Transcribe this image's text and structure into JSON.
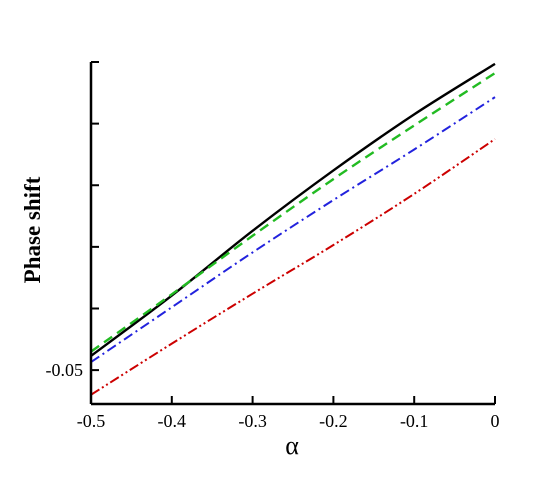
{
  "chart_data": {
    "type": "line",
    "title": "",
    "xlabel": "α",
    "ylabel": "Phase shift",
    "xlim": [
      -0.5,
      0
    ],
    "ylim": [
      -0.0555,
      0.0
    ],
    "x_ticks": [
      -0.5,
      -0.4,
      -0.3,
      -0.2,
      -0.1,
      0
    ],
    "x_tick_labels": [
      "-0.5",
      "-0.4",
      "-0.3",
      "-0.2",
      "-0.1",
      "0"
    ],
    "y_ticks": [
      -0.05,
      -0.04,
      -0.03,
      -0.02,
      -0.01,
      0.0
    ],
    "y_tick_labels": [
      "-0.05",
      "",
      "",
      "",
      "",
      ""
    ],
    "grid": false,
    "series": [
      {
        "color": "#000000",
        "style": "solid",
        "x": [
          -0.5,
          -0.4,
          -0.3,
          -0.2,
          -0.1,
          0
        ],
        "y": [
          -0.0477,
          -0.0379,
          -0.0274,
          -0.0176,
          -0.0085,
          -0.0003
        ]
      },
      {
        "color": "#22bb22",
        "style": "dashed",
        "x": [
          -0.5,
          -0.4,
          -0.3,
          -0.2,
          -0.1,
          0
        ],
        "y": [
          -0.047,
          -0.0377,
          -0.0282,
          -0.019,
          -0.0103,
          -0.0018
        ]
      },
      {
        "color": "#2222dd",
        "style": "dashdot",
        "x": [
          -0.5,
          -0.4,
          -0.3,
          -0.2,
          -0.1,
          0
        ],
        "y": [
          -0.0487,
          -0.0398,
          -0.0309,
          -0.0224,
          -0.0142,
          -0.0057
        ]
      },
      {
        "color": "#cc0000",
        "style": "dashdotdot",
        "x": [
          -0.5,
          -0.4,
          -0.3,
          -0.2,
          -0.1,
          0
        ],
        "y": [
          -0.054,
          -0.0457,
          -0.0376,
          -0.0297,
          -0.0214,
          -0.0125
        ]
      }
    ]
  }
}
